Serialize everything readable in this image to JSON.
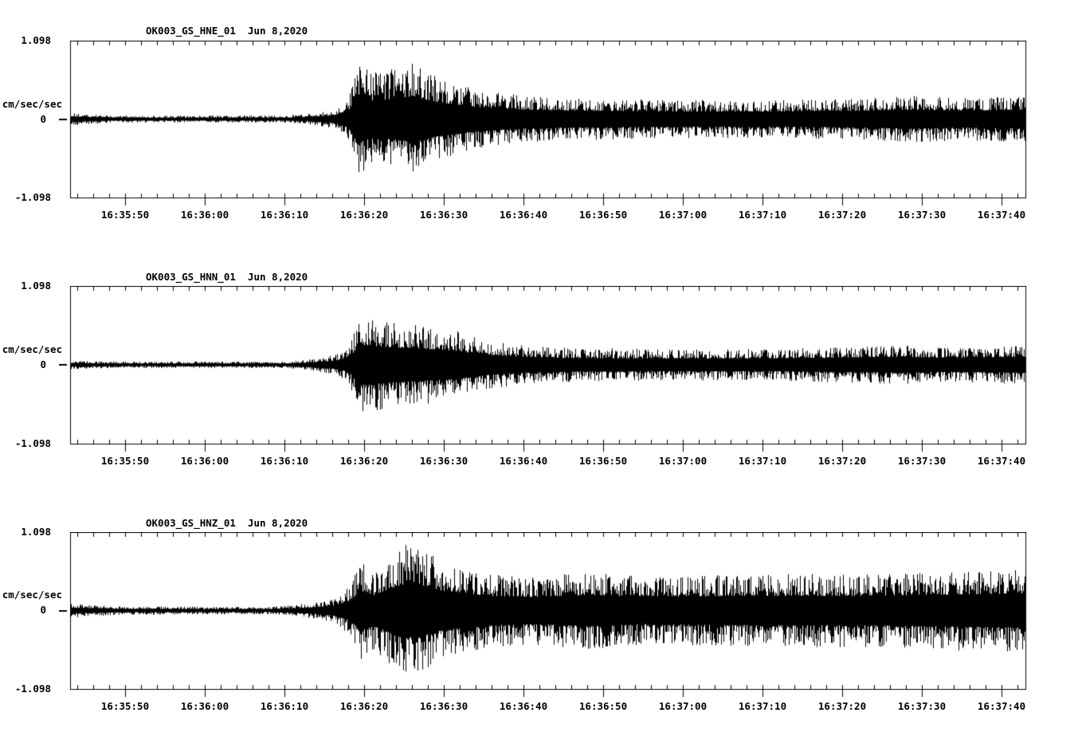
{
  "page": {
    "background_color": "#ffffff",
    "ink_color": "#000000",
    "description": "Three-channel seismic accelerograph waveform display"
  },
  "chart_data": [
    {
      "type": "line",
      "title": "OK003_GS_HNE_01  Jun 8,2020",
      "station_channel": "OK003_GS_HNE_01",
      "date": "Jun 8,2020",
      "ylabel": "cm/sec/sec",
      "y_axis": {
        "max_label": "1.098",
        "zero_label": "0",
        "min_label": "-1.098",
        "unit": "cm/sec/sec"
      },
      "ylim": [
        -1.098,
        1.098
      ],
      "x_tick_labels": [
        "16:35:50",
        "16:36:00",
        "16:36:10",
        "16:36:20",
        "16:36:30",
        "16:36:40",
        "16:36:50",
        "16:37:00",
        "16:37:10",
        "16:37:20",
        "16:37:30",
        "16:37:40"
      ],
      "axis": {
        "duration_s": 119.9,
        "first_major_offset_s": 6.9,
        "major_tick_s": 10,
        "minor_tick_s": 2,
        "first_minor_offset_s": 0.9,
        "grid": false
      },
      "envelope_cm_s2": [
        [
          0,
          0.09
        ],
        [
          5,
          0.05
        ],
        [
          27,
          0.05
        ],
        [
          30,
          0.08
        ],
        [
          33,
          0.13
        ],
        [
          34.8,
          0.3
        ],
        [
          36,
          0.85
        ],
        [
          37.5,
          0.65
        ],
        [
          40,
          0.7
        ],
        [
          43,
          0.8
        ],
        [
          45.5,
          0.62
        ],
        [
          48,
          0.52
        ],
        [
          50,
          0.45
        ],
        [
          53,
          0.39
        ],
        [
          57,
          0.33
        ],
        [
          62,
          0.3
        ],
        [
          75,
          0.27
        ],
        [
          88,
          0.27
        ],
        [
          98,
          0.29
        ],
        [
          106,
          0.33
        ],
        [
          112,
          0.3
        ],
        [
          119.9,
          0.33
        ]
      ]
    },
    {
      "type": "line",
      "title": "OK003_GS_HNN_01  Jun 8,2020",
      "station_channel": "OK003_GS_HNN_01",
      "date": "Jun 8,2020",
      "ylabel": "cm/sec/sec",
      "y_axis": {
        "max_label": "1.098",
        "zero_label": "0",
        "min_label": "-1.098",
        "unit": "cm/sec/sec"
      },
      "ylim": [
        -1.098,
        1.098
      ],
      "x_tick_labels": [
        "16:35:50",
        "16:36:00",
        "16:36:10",
        "16:36:20",
        "16:36:30",
        "16:36:40",
        "16:36:50",
        "16:37:00",
        "16:37:10",
        "16:37:20",
        "16:37:30",
        "16:37:40"
      ],
      "axis": {
        "duration_s": 119.9,
        "first_major_offset_s": 6.9,
        "major_tick_s": 10,
        "minor_tick_s": 2,
        "first_minor_offset_s": 0.9,
        "grid": false
      },
      "envelope_cm_s2": [
        [
          0,
          0.06
        ],
        [
          5,
          0.045
        ],
        [
          27,
          0.045
        ],
        [
          30,
          0.08
        ],
        [
          33,
          0.14
        ],
        [
          34.8,
          0.24
        ],
        [
          36.3,
          0.69
        ],
        [
          40,
          0.62
        ],
        [
          44,
          0.56
        ],
        [
          48,
          0.5
        ],
        [
          52,
          0.36
        ],
        [
          56,
          0.28
        ],
        [
          62,
          0.24
        ],
        [
          75,
          0.22
        ],
        [
          88,
          0.22
        ],
        [
          100,
          0.26
        ],
        [
          104,
          0.28
        ],
        [
          110,
          0.24
        ],
        [
          119.9,
          0.28
        ]
      ]
    },
    {
      "type": "line",
      "title": "OK003_GS_HNZ_01  Jun 8,2020",
      "station_channel": "OK003_GS_HNZ_01",
      "date": "Jun 8,2020",
      "ylabel": "cm/sec/sec",
      "y_axis": {
        "max_label": "1.098",
        "zero_label": "0",
        "min_label": "-1.098",
        "unit": "cm/sec/sec"
      },
      "ylim": [
        -1.098,
        1.098
      ],
      "x_tick_labels": [
        "16:35:50",
        "16:36:00",
        "16:36:10",
        "16:36:20",
        "16:36:30",
        "16:36:40",
        "16:36:50",
        "16:37:00",
        "16:37:10",
        "16:37:20",
        "16:37:30",
        "16:37:40"
      ],
      "axis": {
        "duration_s": 119.9,
        "first_major_offset_s": 6.9,
        "major_tick_s": 10,
        "minor_tick_s": 2,
        "first_minor_offset_s": 0.9,
        "grid": false
      },
      "envelope_cm_s2": [
        [
          0,
          0.1
        ],
        [
          6,
          0.06
        ],
        [
          25,
          0.05
        ],
        [
          28,
          0.08
        ],
        [
          31,
          0.12
        ],
        [
          33,
          0.18
        ],
        [
          35,
          0.35
        ],
        [
          36.3,
          0.7
        ],
        [
          38,
          0.55
        ],
        [
          40.5,
          0.82
        ],
        [
          42,
          0.94
        ],
        [
          44,
          0.9
        ],
        [
          46,
          0.72
        ],
        [
          48,
          0.65
        ],
        [
          52,
          0.52
        ],
        [
          58,
          0.48
        ],
        [
          65,
          0.55
        ],
        [
          72,
          0.48
        ],
        [
          80,
          0.5
        ],
        [
          90,
          0.52
        ],
        [
          100,
          0.52
        ],
        [
          110,
          0.56
        ],
        [
          119.9,
          0.6
        ]
      ]
    }
  ]
}
